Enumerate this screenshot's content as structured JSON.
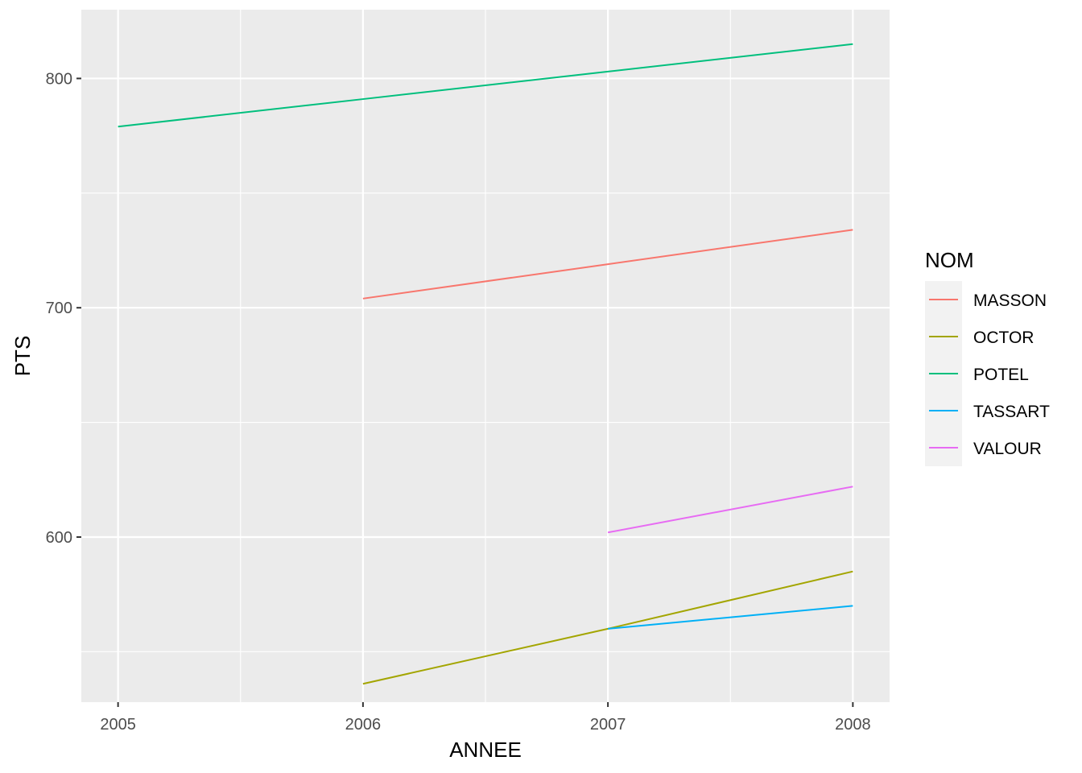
{
  "chart_data": {
    "type": "line",
    "xlabel": "ANNEE",
    "ylabel": "PTS",
    "xlim": [
      2004.85,
      2008.15
    ],
    "ylim": [
      528,
      830
    ],
    "x_ticks": [
      2005,
      2006,
      2007,
      2008
    ],
    "x_tick_labels": [
      "2005",
      "2006",
      "2007",
      "2008"
    ],
    "x_minor": [
      2005.5,
      2006.5,
      2007.5
    ],
    "y_ticks": [
      600,
      700,
      800
    ],
    "y_tick_labels": [
      "600",
      "700",
      "800"
    ],
    "y_minor": [
      550,
      650,
      750
    ],
    "grid": true,
    "legend": {
      "title": "NOM",
      "placement": "right"
    },
    "series": [
      {
        "name": "MASSON",
        "color": "#F8766D",
        "x": [
          2006,
          2007,
          2008
        ],
        "y": [
          704,
          719,
          734
        ]
      },
      {
        "name": "OCTOR",
        "color": "#A3A500",
        "x": [
          2006,
          2007,
          2008
        ],
        "y": [
          536,
          560,
          585
        ]
      },
      {
        "name": "POTEL",
        "color": "#00BF7D",
        "x": [
          2005,
          2006,
          2007,
          2008
        ],
        "y": [
          779,
          791,
          803,
          815
        ]
      },
      {
        "name": "TASSART",
        "color": "#00B0F6",
        "x": [
          2007,
          2008
        ],
        "y": [
          560,
          570
        ]
      },
      {
        "name": "VALOUR",
        "color": "#E76BF3",
        "x": [
          2007,
          2008
        ],
        "y": [
          602,
          622
        ]
      }
    ]
  }
}
